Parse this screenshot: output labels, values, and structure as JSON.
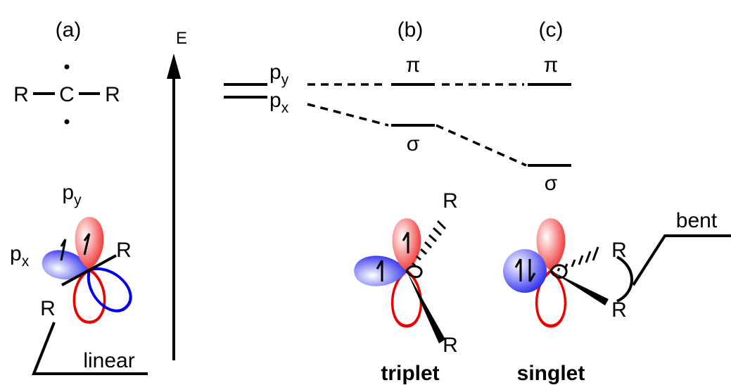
{
  "panels": [
    {
      "label": "(a)"
    },
    {
      "label": "(b)"
    },
    {
      "label": "(c)"
    }
  ],
  "energy_axis": {
    "label": "E"
  },
  "molecule_a": {
    "atoms": [
      "R",
      "C",
      "R"
    ],
    "orbitals": [
      {
        "base": "p",
        "sub": "y"
      },
      {
        "base": "p",
        "sub": "x"
      }
    ],
    "substituents": [
      "R",
      "R"
    ],
    "geometry": "linear"
  },
  "levels": {
    "left": [
      {
        "base": "p",
        "sub": "y"
      },
      {
        "base": "p",
        "sub": "x"
      }
    ],
    "b": [
      "π",
      "σ"
    ],
    "c": [
      "π",
      "σ"
    ]
  },
  "molecule_b": {
    "substituents": [
      "R",
      "R"
    ],
    "state": "triplet"
  },
  "molecule_c": {
    "substituents": [
      "R",
      "R"
    ],
    "state": "singlet",
    "geometry": "bent"
  }
}
